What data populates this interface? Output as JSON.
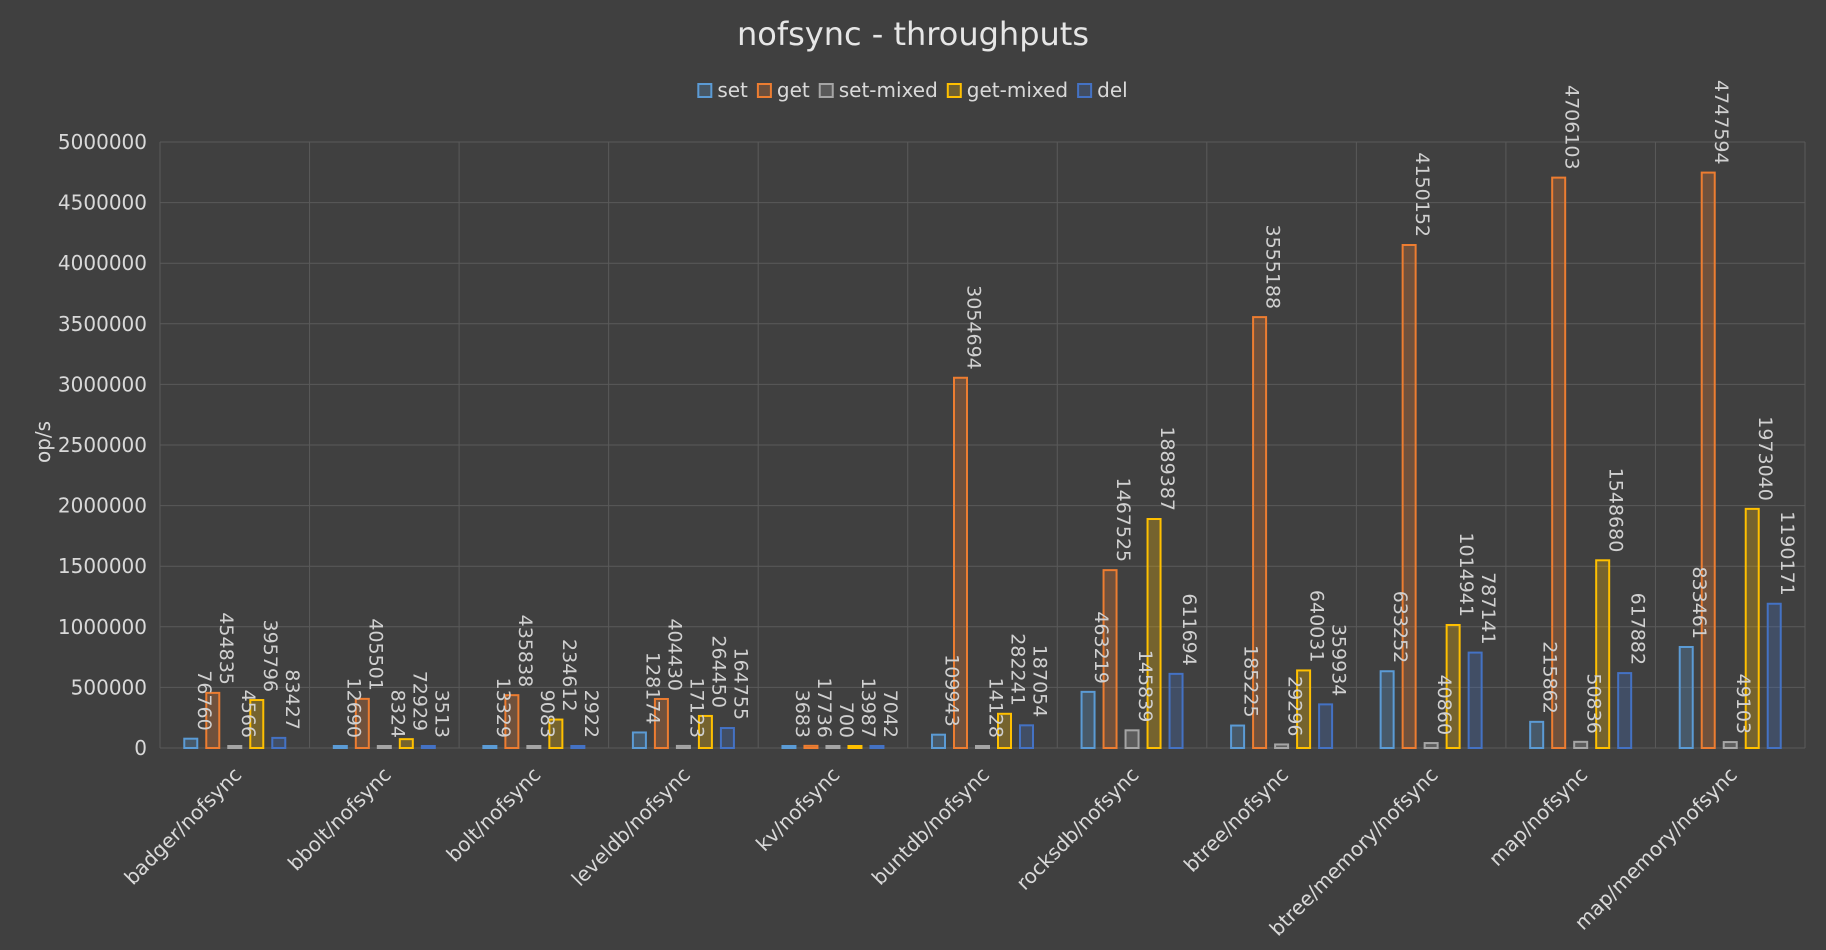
{
  "chart_data": {
    "type": "bar",
    "title": "nofsync - throughputs",
    "ylabel": "op/s",
    "xlabel": "",
    "ylim": [
      0,
      5000000
    ],
    "yticks": [
      0,
      500000,
      1000000,
      1500000,
      2000000,
      2500000,
      3000000,
      3500000,
      4000000,
      4500000,
      5000000
    ],
    "grid": true,
    "legend_position": "top-center",
    "categories": [
      "badger/nofsync",
      "bbolt/nofsync",
      "bolt/nofsync",
      "leveldb/nofsync",
      "kv/nofsync",
      "buntdb/nofsync",
      "rocksdb/nofsync",
      "btree/nofsync",
      "btree/memory/nofsync",
      "map/nofsync",
      "map/memory/nofsync"
    ],
    "series": [
      {
        "name": "set",
        "color": "#5b9bd5",
        "values": [
          76760,
          12690,
          13329,
          128174,
          3683,
          109943,
          463219,
          185225,
          633252,
          215862,
          833461
        ]
      },
      {
        "name": "get",
        "color": "#ed7d31",
        "values": [
          454835,
          405501,
          435838,
          404430,
          17736,
          3054694,
          1467525,
          3555188,
          4150152,
          4706103,
          4747594
        ]
      },
      {
        "name": "set-mixed",
        "color": "#a5a5a5",
        "values": [
          4566,
          8324,
          9083,
          17123,
          700,
          14128,
          145839,
          29296,
          40860,
          50836,
          49103
        ]
      },
      {
        "name": "get-mixed",
        "color": "#ffc000",
        "values": [
          395796,
          72929,
          234612,
          264450,
          13987,
          282241,
          1889387,
          640031,
          1014941,
          1548680,
          1973040
        ]
      },
      {
        "name": "del",
        "color": "#4472c4",
        "values": [
          83427,
          3513,
          2922,
          164755,
          7042,
          187054,
          611694,
          359934,
          787141,
          617882,
          1190171
        ]
      }
    ]
  }
}
